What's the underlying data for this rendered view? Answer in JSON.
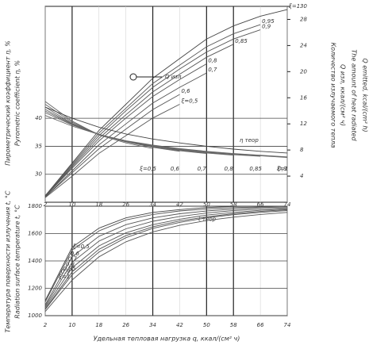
{
  "chart_data": [
    {
      "type": "line",
      "y_label": "Пирометрический коэффициент η, %",
      "y_label_en": "Pyrometric coefficient η, %",
      "y2_label": "Количество излучаемого тепла",
      "y2_label_2": "Q изл, ккал/(см² ч)",
      "y2_label_en": "The amount of heat radiated",
      "y2_label_en_2": "Q emitted, kcal/(cm² h)",
      "annotations": [
        "Q изл"
      ],
      "x": [
        2,
        10,
        18,
        26,
        34,
        42,
        50,
        58,
        66,
        74
      ],
      "xlim": [
        2,
        74
      ],
      "xticks": [
        2,
        10,
        18,
        26,
        34,
        42,
        50,
        58,
        66,
        74
      ],
      "ylim": [
        25,
        60
      ],
      "yticks": [
        30,
        35,
        40
      ],
      "y2lim": [
        0,
        30
      ],
      "y2ticks": [
        4,
        8,
        12,
        16,
        20,
        24,
        28,
        30
      ],
      "grid": true,
      "series": [
        {
          "name": "ξ=1",
          "color": "#444",
          "axis": "y2",
          "values": [
            1,
            6,
            11,
            15,
            19,
            22,
            25,
            27,
            28.5,
            29.5
          ]
        },
        {
          "name": "0,95",
          "color": "#555",
          "axis": "y2",
          "values": [
            1,
            5.8,
            10.6,
            14.4,
            18.2,
            21,
            23.8,
            25.8,
            27.2,
            null
          ]
        },
        {
          "name": "0,9",
          "color": "#555",
          "axis": "y2",
          "values": [
            0.9,
            5.6,
            10.2,
            14,
            17.6,
            20.4,
            23,
            25,
            26.4,
            null
          ]
        },
        {
          "name": "0,85",
          "color": "#555",
          "axis": "y2",
          "values": [
            0.9,
            5.4,
            9.8,
            13.4,
            16.9,
            19.6,
            22.2,
            24.2,
            null,
            null
          ]
        },
        {
          "name": "0,8",
          "color": "#555",
          "axis": "y2",
          "values": [
            0.9,
            5.2,
            9.4,
            12.9,
            16.2,
            18.8,
            21.2,
            null,
            null,
            null
          ]
        },
        {
          "name": "0,7",
          "color": "#555",
          "axis": "y2",
          "values": [
            0.8,
            4.8,
            8.8,
            12,
            15.2,
            17.6,
            19.8,
            null,
            null,
            null
          ]
        },
        {
          "name": "0,6",
          "color": "#555",
          "axis": "y2",
          "values": [
            0.8,
            4.5,
            8.2,
            11.2,
            14.2,
            16.5,
            null,
            null,
            null,
            null
          ]
        },
        {
          "name": "ξ=0,5",
          "color": "#555",
          "axis": "y2",
          "values": [
            0.7,
            4,
            7.5,
            10.2,
            12.9,
            15,
            null,
            null,
            null,
            null
          ]
        },
        {
          "name": "ξ=0,5",
          "color": "#666",
          "axis": "y",
          "values": [
            43,
            39.5,
            37,
            35.6,
            34.6,
            null,
            null,
            null,
            null,
            null
          ]
        },
        {
          "name": "0,6",
          "color": "#666",
          "axis": "y",
          "values": [
            42.5,
            39.3,
            37.1,
            35.8,
            34.8,
            34.1,
            null,
            null,
            null,
            null
          ]
        },
        {
          "name": "0,7",
          "color": "#666",
          "axis": "y",
          "values": [
            42,
            39.1,
            37.1,
            35.8,
            34.9,
            34.2,
            33.7,
            null,
            null,
            null
          ]
        },
        {
          "name": "0,8",
          "color": "#666",
          "axis": "y",
          "values": [
            41.6,
            39,
            37.1,
            35.9,
            35,
            34.3,
            33.8,
            33.4,
            null,
            null
          ]
        },
        {
          "name": "0,85",
          "color": "#666",
          "axis": "y",
          "values": [
            41.3,
            38.9,
            37.1,
            35.9,
            35,
            34.4,
            33.9,
            33.5,
            33.2,
            null
          ]
        },
        {
          "name": "0,9",
          "color": "#666",
          "axis": "y",
          "values": [
            41,
            38.8,
            37.1,
            35.9,
            35.1,
            34.5,
            34,
            33.6,
            33.3,
            33
          ]
        },
        {
          "name": "ξ=1",
          "color": "#666",
          "axis": "y",
          "values": [
            40.5,
            38.6,
            37.1,
            36,
            35.2,
            34.6,
            34.1,
            33.7,
            33.4,
            33.1
          ]
        },
        {
          "name": "η теор",
          "color": "#444",
          "axis": "y",
          "values": [
            42,
            40,
            38.4,
            37.2,
            36.3,
            35.6,
            35,
            34.5,
            34.1,
            33.8
          ]
        }
      ]
    },
    {
      "type": "line",
      "y_label": "Температура поверхности излучения t, °C",
      "y_label_en": "Radiation surface temperature t, °C",
      "x_label": "Удельная тепловая нагрузка q, ккал/(см² ч)",
      "x": [
        2,
        10,
        18,
        26,
        34,
        42,
        50,
        58,
        66,
        74
      ],
      "xlim": [
        2,
        74
      ],
      "xticks": [
        2,
        10,
        18,
        26,
        34,
        42,
        50,
        58,
        66,
        74
      ],
      "ylim": [
        1000,
        1800
      ],
      "yticks": [
        1000,
        1200,
        1400,
        1600,
        1800
      ],
      "grid": true,
      "series": [
        {
          "name": "t теор",
          "color": "#444",
          "values": [
            1110,
            1500,
            1640,
            1715,
            1755,
            1775,
            1790,
            1798,
            1800,
            1800
          ]
        },
        {
          "name": "ξ=0,5",
          "color": "#555",
          "values": [
            1100,
            1480,
            1620,
            1700,
            1740,
            1765,
            1780,
            1790,
            1795,
            1800
          ]
        },
        {
          "name": "0,6",
          "color": "#555",
          "values": [
            1080,
            1430,
            1580,
            1665,
            1715,
            1745,
            1765,
            1780,
            1790,
            1795
          ]
        },
        {
          "name": "0,7",
          "color": "#555",
          "values": [
            1070,
            1390,
            1545,
            1635,
            1690,
            1725,
            1750,
            1768,
            1780,
            1788
          ]
        },
        {
          "name": "0,8",
          "color": "#555",
          "values": [
            1060,
            1350,
            1510,
            1605,
            1665,
            1705,
            1735,
            1755,
            1770,
            1780
          ]
        },
        {
          "name": "0,85",
          "color": "#555",
          "values": [
            1050,
            1320,
            1485,
            1585,
            1650,
            1692,
            1722,
            1745,
            1762,
            1775
          ]
        },
        {
          "name": "0,9",
          "color": "#555",
          "values": [
            1045,
            1300,
            1465,
            1570,
            1638,
            1682,
            1715,
            1738,
            1755,
            1768
          ]
        },
        {
          "name": "ξ=1",
          "color": "#555",
          "values": [
            1030,
            1260,
            1430,
            1540,
            1612,
            1660,
            1695,
            1720,
            1740,
            1755
          ]
        }
      ]
    }
  ]
}
